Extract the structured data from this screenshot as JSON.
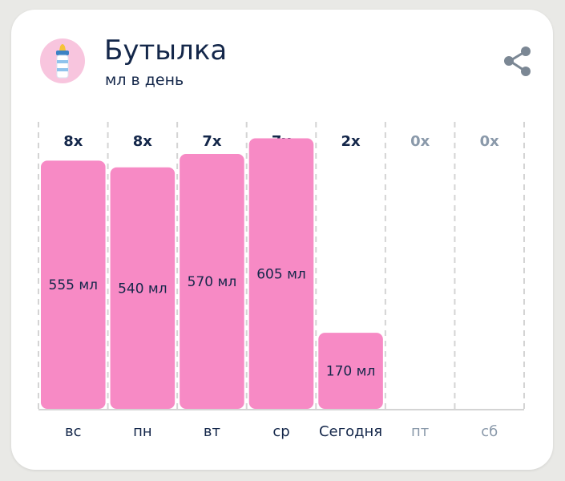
{
  "header": {
    "title": "Бутылка",
    "subtitle": "мл в день",
    "icon": "baby-bottle-icon",
    "share_icon": "share-icon"
  },
  "colors": {
    "bar": "#f78ac5",
    "text_dark": "#14274a",
    "text_muted": "#8a99aa",
    "avatar_bg": "#f8c5de"
  },
  "chart_data": {
    "type": "bar",
    "categories": [
      "вс",
      "пн",
      "вт",
      "ср",
      "Сегодня",
      "пт",
      "сб"
    ],
    "values": [
      555,
      540,
      570,
      605,
      170,
      null,
      null
    ],
    "value_labels": [
      "555 мл",
      "540 мл",
      "570 мл",
      "605 мл",
      "170 мл",
      "",
      ""
    ],
    "counts": [
      "8x",
      "8x",
      "7x",
      "7x",
      "2x",
      "0x",
      "0x"
    ],
    "category_muted": [
      false,
      false,
      false,
      false,
      false,
      true,
      true
    ],
    "ylim": [
      0,
      640
    ],
    "grid": "vertical-dashed",
    "legend": "none"
  }
}
